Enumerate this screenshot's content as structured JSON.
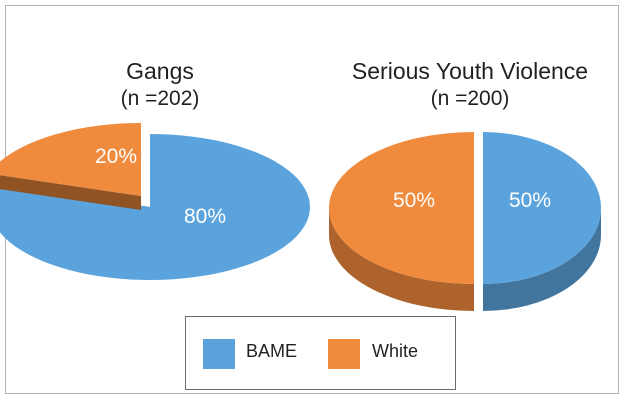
{
  "colors": {
    "bame": "#5ba3dc",
    "white": "#f08a3c"
  },
  "chart_data": [
    {
      "type": "pie",
      "title": "Gangs",
      "subtitle": "(n =202)",
      "categories": [
        "BAME",
        "White"
      ],
      "values": [
        80,
        20
      ],
      "data_labels": [
        "80%",
        "20%"
      ],
      "exploded": "White"
    },
    {
      "type": "pie",
      "title": "Serious Youth Violence",
      "subtitle": "(n =200)",
      "categories": [
        "BAME",
        "White"
      ],
      "values": [
        50,
        50
      ],
      "data_labels": [
        "50%",
        "50%"
      ],
      "exploded": "both"
    }
  ],
  "legend": {
    "placement": "bottom-center",
    "items": [
      {
        "label": "BAME",
        "color": "#5ba3dc"
      },
      {
        "label": "White",
        "color": "#f08a3c"
      }
    ]
  }
}
